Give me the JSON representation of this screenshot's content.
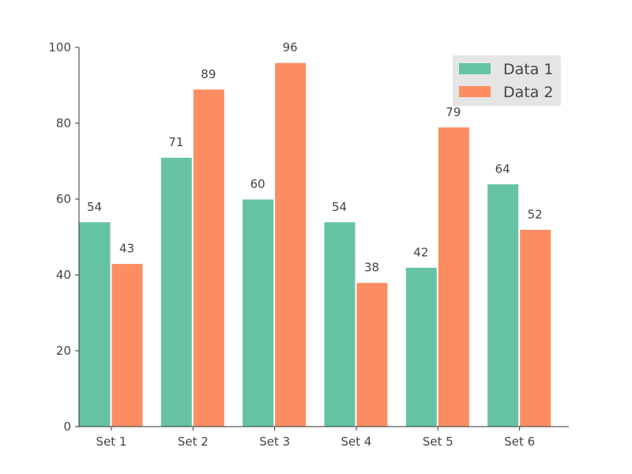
{
  "chart_data": {
    "type": "bar",
    "categories": [
      "Set 1",
      "Set 2",
      "Set 3",
      "Set 4",
      "Set 5",
      "Set 6"
    ],
    "series": [
      {
        "name": "Data 1",
        "color": "#66c2a5",
        "values": [
          54,
          71,
          60,
          54,
          42,
          64
        ]
      },
      {
        "name": "Data 2",
        "color": "#fc8d62",
        "values": [
          43,
          89,
          96,
          38,
          79,
          52
        ]
      }
    ],
    "ylim": [
      0,
      100
    ],
    "yticks": [
      0,
      20,
      40,
      60,
      80,
      100
    ],
    "legend_position": "top-right",
    "legend_background": "#e5e5e5",
    "grid": false,
    "title": "",
    "xlabel": "",
    "ylabel": ""
  }
}
